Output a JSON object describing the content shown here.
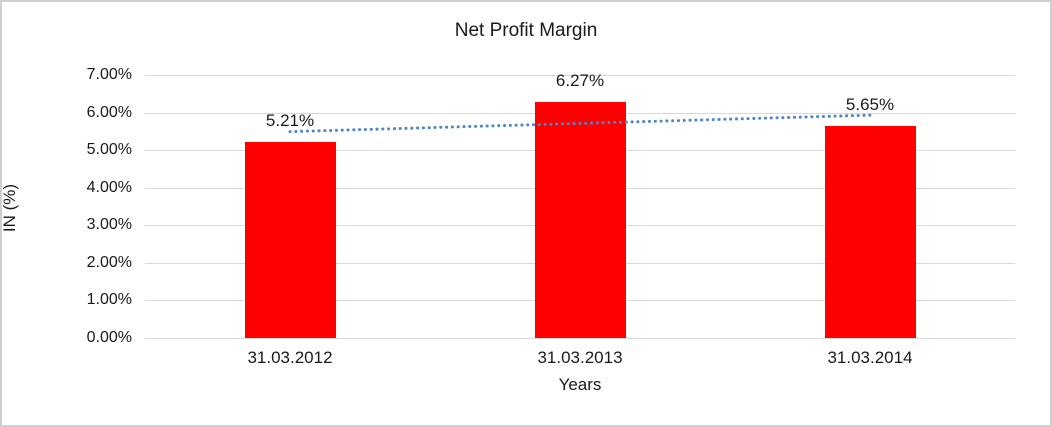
{
  "chart_data": {
    "type": "bar",
    "title": "Net Profit Margin",
    "xlabel": "Years",
    "ylabel": "IN (%)",
    "categories": [
      "31.03.2012",
      "31.03.2013",
      "31.03.2014"
    ],
    "values": [
      5.21,
      6.27,
      5.65
    ],
    "data_labels": [
      "5.21%",
      "6.27%",
      "5.65%"
    ],
    "y_ticks": [
      {
        "label": "7.00%",
        "value": 7
      },
      {
        "label": "6.00%",
        "value": 6
      },
      {
        "label": "5.00%",
        "value": 5
      },
      {
        "label": "4.00%",
        "value": 4
      },
      {
        "label": "3.00%",
        "value": 3
      },
      {
        "label": "2.00%",
        "value": 2
      },
      {
        "label": "1.00%",
        "value": 1
      },
      {
        "label": "0.00%",
        "value": 0
      }
    ],
    "ylim": [
      0,
      7
    ],
    "grid": true,
    "legend_position": "none",
    "bar_color": "#ff0000",
    "text_color": "#1a1a1a",
    "gridline_color": "#d9d9d9",
    "trendline": {
      "type": "linear",
      "line_style": "dotted",
      "color": "#4a86c8",
      "start_value": 5.49,
      "end_value": 5.93
    }
  }
}
